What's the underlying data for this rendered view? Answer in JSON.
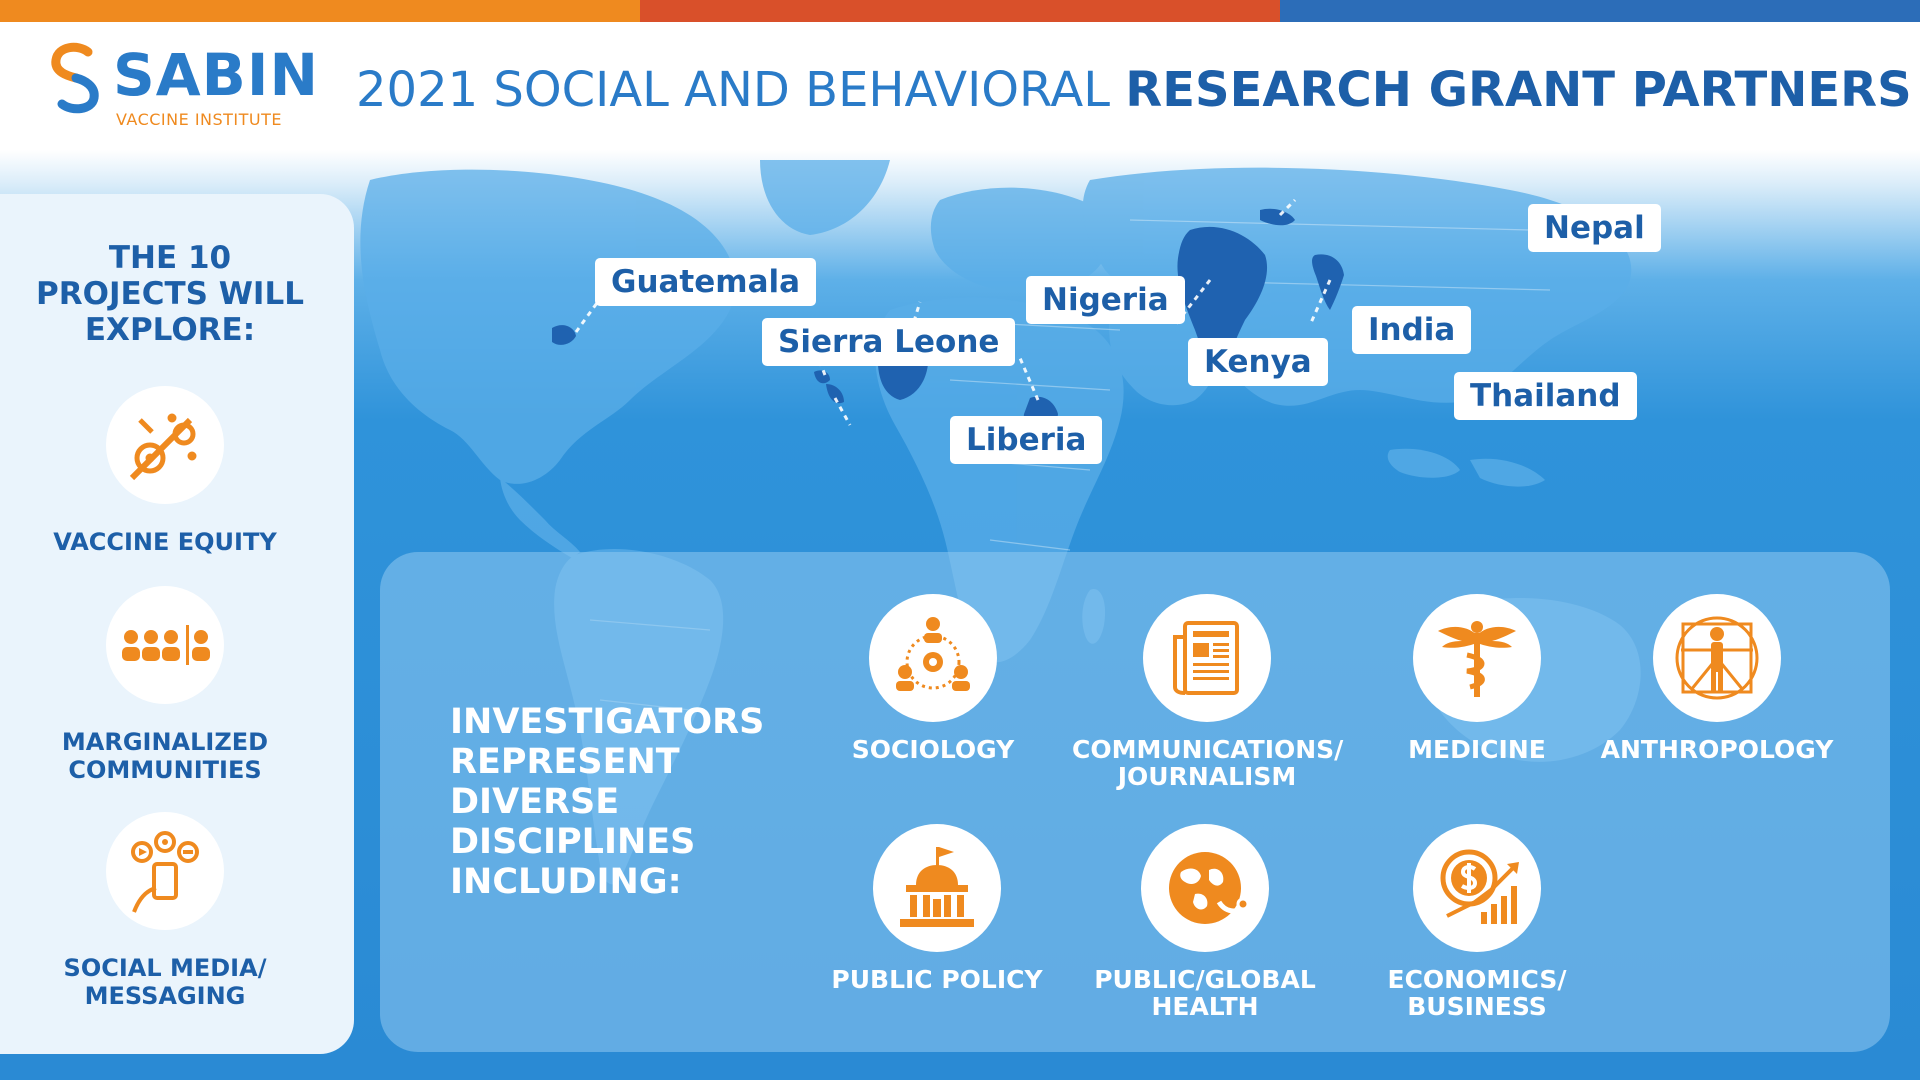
{
  "colors": {
    "orange": "#ef8a1f",
    "red_orange": "#d9502a",
    "blue": "#2a7bc8",
    "dark_blue": "#1d5fa8",
    "country_highlight": "#1f62b0"
  },
  "logo": {
    "name": "SABIN",
    "subtitle": "VACCINE INSTITUTE",
    "icon": "s-link-icon"
  },
  "title": {
    "regular": "2021 SOCIAL AND BEHAVIORAL ",
    "bold": "RESEARCH GRANT PARTNERS"
  },
  "sidebar": {
    "heading": "THE 10\nPROJECTS WILL\nEXPLORE:",
    "items": [
      {
        "label": "VACCINE EQUITY",
        "icon": "vaccine-syringe-icon"
      },
      {
        "label": "MARGINALIZED\nCOMMUNITIES",
        "icon": "people-group-icon"
      },
      {
        "label": "SOCIAL MEDIA/\nMESSAGING",
        "icon": "phone-messaging-icon"
      }
    ]
  },
  "map": {
    "countries": [
      "Guatemala",
      "Sierra Leone",
      "Liberia",
      "Nigeria",
      "Kenya",
      "India",
      "Nepal",
      "Thailand"
    ]
  },
  "disciplines": {
    "heading": "INVESTIGATORS\nREPRESENT\nDIVERSE\nDISCIPLINES\nINCLUDING:",
    "items": [
      {
        "label": "SOCIOLOGY",
        "icon": "sociology-network-icon"
      },
      {
        "label": "COMMUNICATIONS/\nJOURNALISM",
        "icon": "newspaper-icon"
      },
      {
        "label": "MEDICINE",
        "icon": "caduceus-icon"
      },
      {
        "label": "ANTHROPOLOGY",
        "icon": "vitruvian-man-icon"
      },
      {
        "label": "PUBLIC POLICY",
        "icon": "government-building-icon"
      },
      {
        "label": "PUBLIC/GLOBAL\nHEALTH",
        "icon": "globe-health-icon"
      },
      {
        "label": "ECONOMICS/\nBUSINESS",
        "icon": "dollar-chart-icon"
      }
    ]
  }
}
